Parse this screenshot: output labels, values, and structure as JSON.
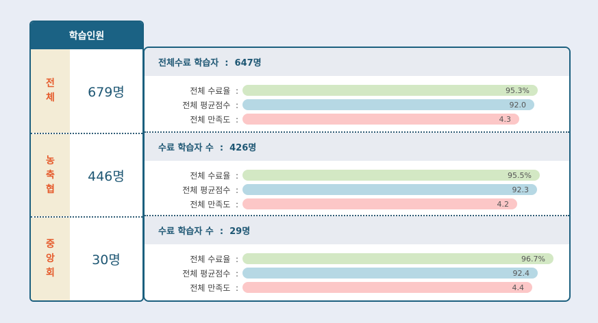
{
  "left": {
    "header": "학습인원",
    "rows": [
      {
        "category": "전체",
        "count": "679명"
      },
      {
        "category": "농축협",
        "count": "446명"
      },
      {
        "category": "중앙회",
        "count": "30명"
      }
    ]
  },
  "colors": {
    "completion": "#d3e8c4",
    "score": "#b6d8e4",
    "satisfaction": "#fcc7c7"
  },
  "sections": [
    {
      "title": "전체수료 학습자  :  647명",
      "metrics": [
        {
          "label": "전체 수료율  :",
          "value": "95.3%",
          "fill": 0.936
        },
        {
          "label": "전체 평균점수  :",
          "value": "92.0",
          "fill": 0.926
        },
        {
          "label": "전체 만족도  :",
          "value": "4.3",
          "fill": 0.878
        }
      ]
    },
    {
      "title": "수료 학습자 수  :  426명",
      "metrics": [
        {
          "label": "전체 수료율  :",
          "value": "95.5%",
          "fill": 0.943
        },
        {
          "label": "전체 평균점수  :",
          "value": "92.3",
          "fill": 0.935
        },
        {
          "label": "전체 만족도  :",
          "value": "4.2",
          "fill": 0.872
        }
      ]
    },
    {
      "title": "수료 학습자 수  :  29명",
      "metrics": [
        {
          "label": "전체 수료율  :",
          "value": "96.7%",
          "fill": 0.987
        },
        {
          "label": "전체 평균점수  :",
          "value": "92.4",
          "fill": 0.938
        },
        {
          "label": "전체 만족도  :",
          "value": "4.4",
          "fill": 0.92
        }
      ]
    }
  ]
}
